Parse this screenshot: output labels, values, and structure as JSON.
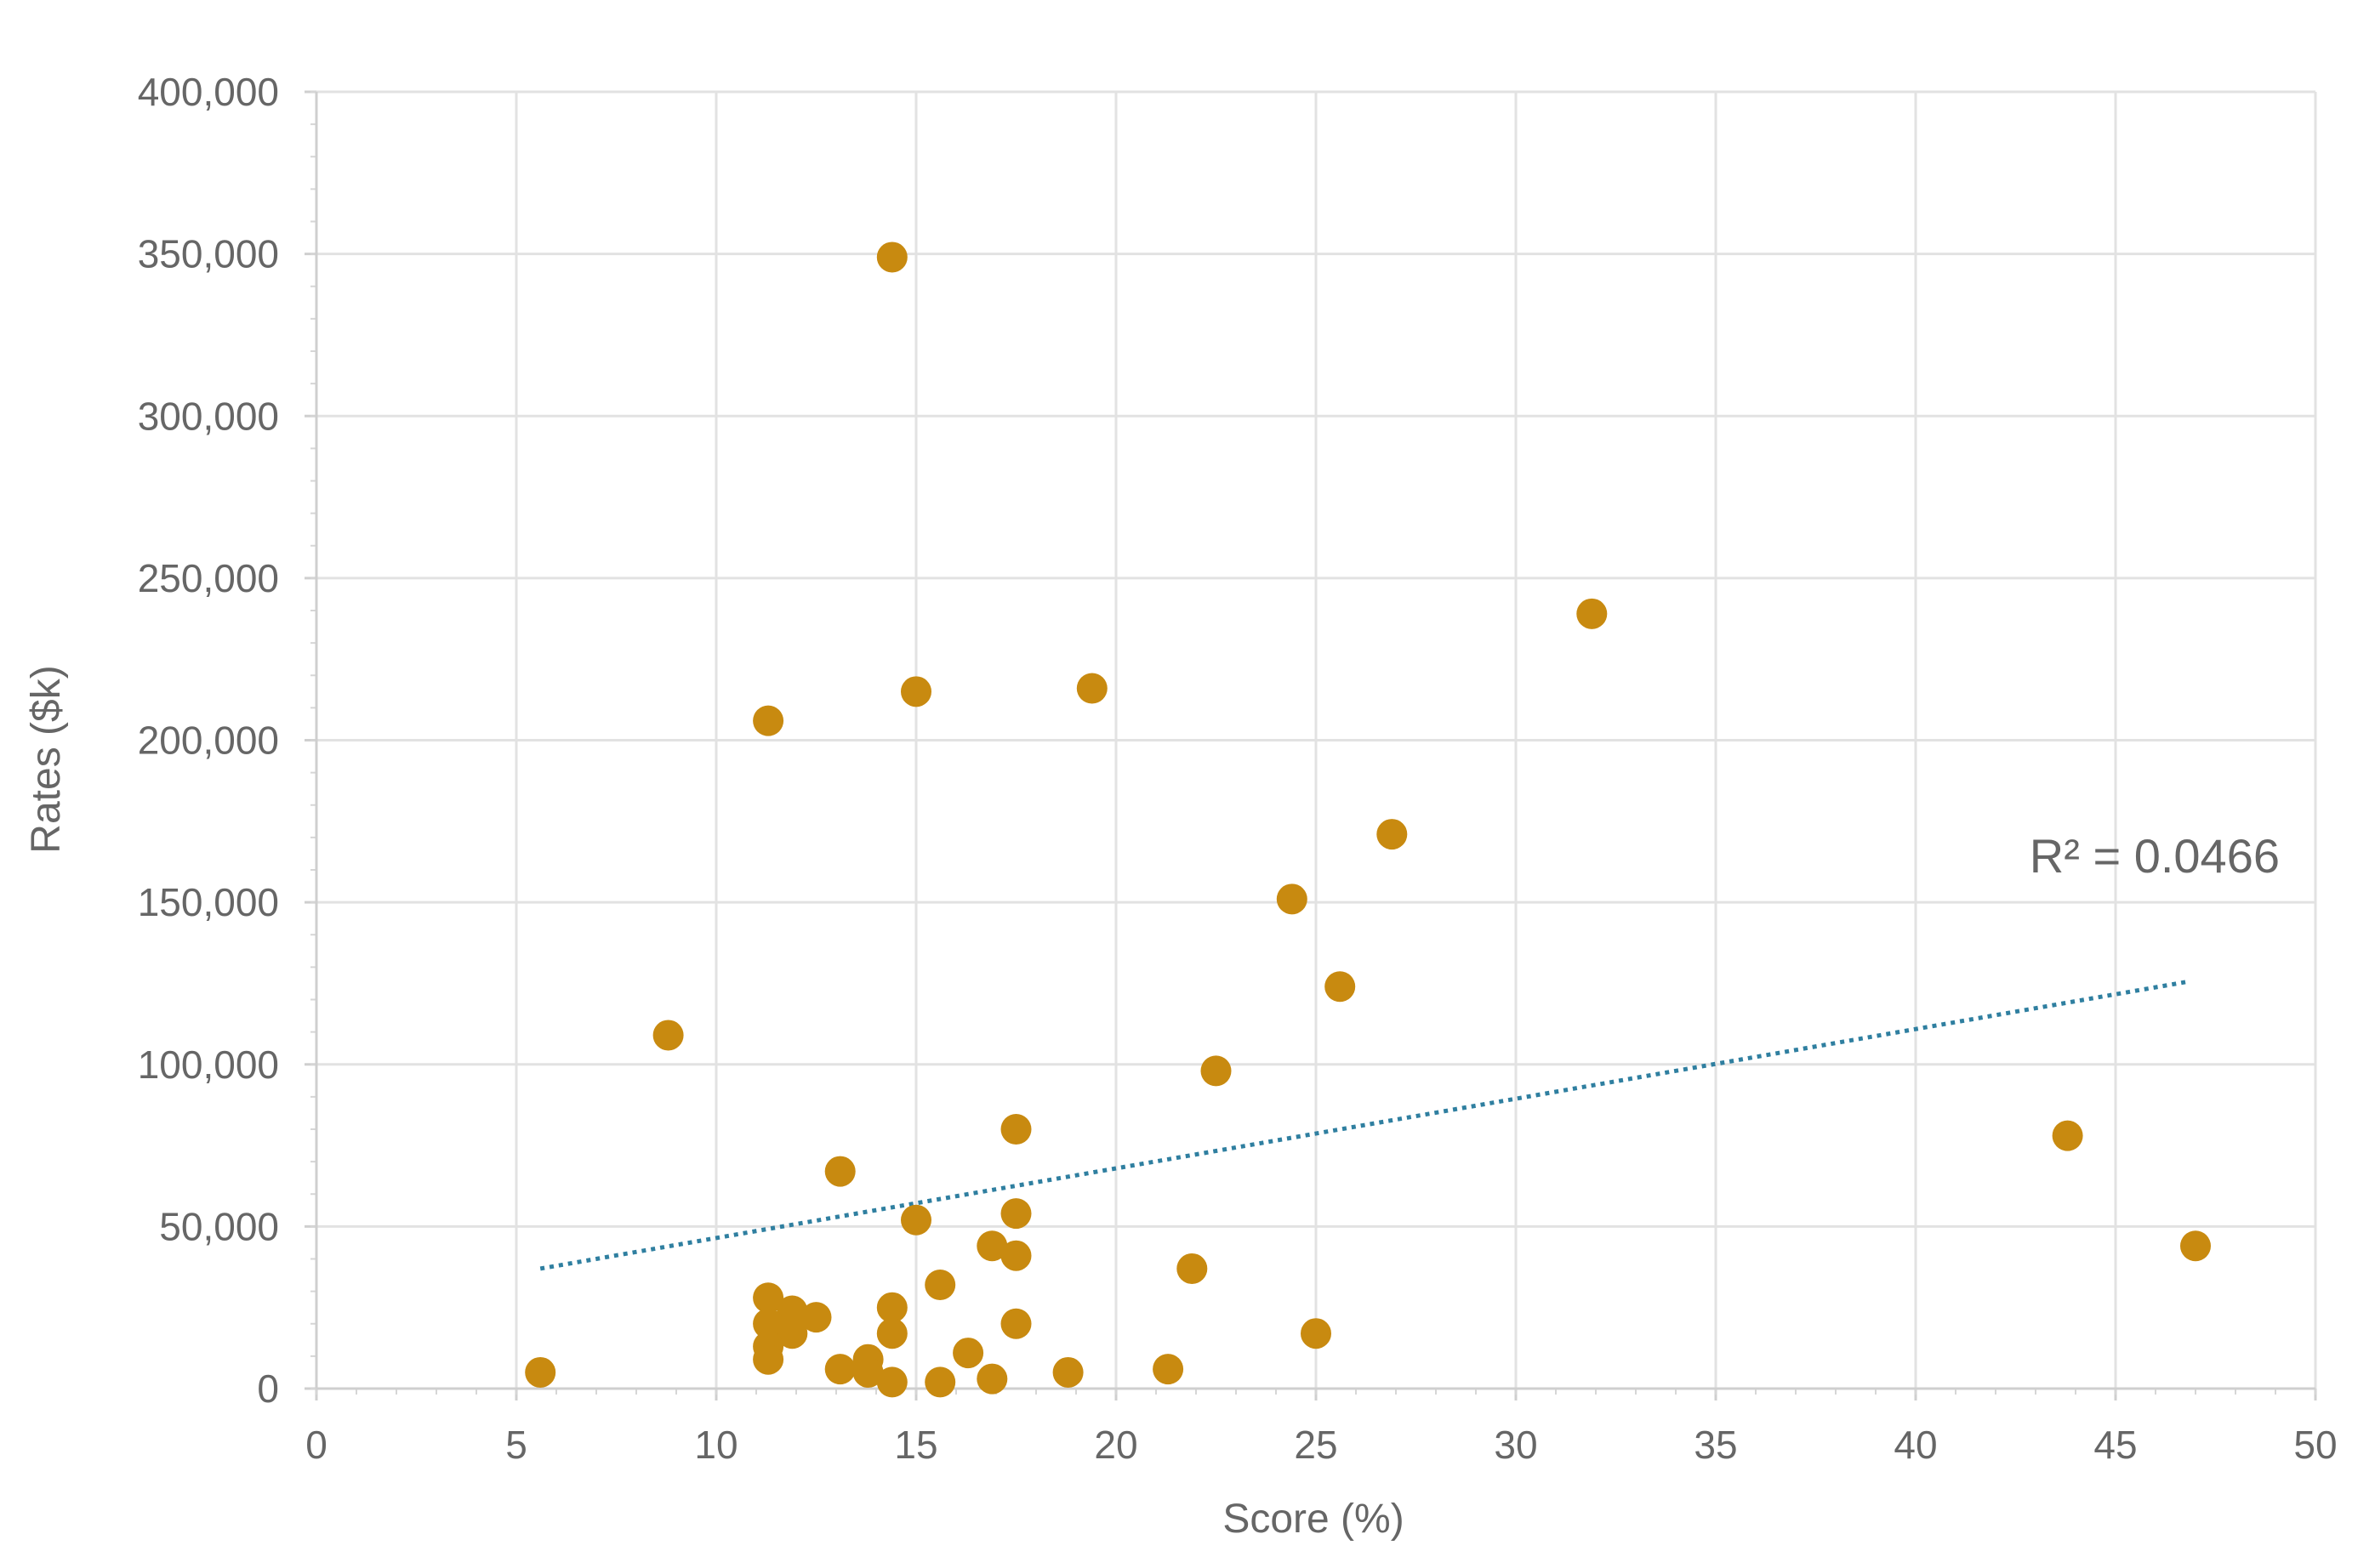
{
  "chart_data": {
    "type": "scatter",
    "title": "",
    "xlabel": "Score (%)",
    "ylabel": "Rates ($k)",
    "xlim": [
      0,
      50
    ],
    "ylim": [
      0,
      400000
    ],
    "x_ticks": [
      0,
      5,
      10,
      15,
      20,
      25,
      30,
      35,
      40,
      45,
      50
    ],
    "x_tick_labels": [
      "0",
      "5",
      "10",
      "15",
      "20",
      "25",
      "30",
      "35",
      "40",
      "45",
      "50"
    ],
    "y_ticks": [
      0,
      50000,
      100000,
      150000,
      200000,
      250000,
      300000,
      350000,
      400000
    ],
    "y_tick_labels": [
      "0",
      "50,000",
      "100,000",
      "150,000",
      "200,000",
      "250,000",
      "300,000",
      "350,000",
      "400,000"
    ],
    "grid": true,
    "legend": "none",
    "colors": {
      "points": "#c88a10",
      "trendline": "#2f7fa0",
      "grid": "#e2e2e2",
      "text": "#666666"
    },
    "series": [
      {
        "points": [
          [
            14.4,
            349000
          ],
          [
            31.9,
            239000
          ],
          [
            19.4,
            216000
          ],
          [
            15.0,
            215000
          ],
          [
            11.3,
            206000
          ],
          [
            26.9,
            171000
          ],
          [
            24.4,
            151000
          ],
          [
            25.6,
            124000
          ],
          [
            8.8,
            109000
          ],
          [
            22.5,
            98000
          ],
          [
            43.8,
            78000
          ],
          [
            17.5,
            80000
          ],
          [
            13.1,
            67000
          ],
          [
            17.5,
            54000
          ],
          [
            15.0,
            52000
          ],
          [
            16.9,
            44000
          ],
          [
            47.0,
            44000
          ],
          [
            17.5,
            41000
          ],
          [
            21.9,
            37000
          ],
          [
            15.6,
            32000
          ],
          [
            11.3,
            28000
          ],
          [
            11.9,
            24000
          ],
          [
            14.4,
            25000
          ],
          [
            12.5,
            22000
          ],
          [
            11.3,
            20000
          ],
          [
            17.5,
            20000
          ],
          [
            11.9,
            17000
          ],
          [
            14.4,
            17000
          ],
          [
            25.0,
            17000
          ],
          [
            11.3,
            13000
          ],
          [
            16.3,
            11000
          ],
          [
            13.8,
            9000
          ],
          [
            11.3,
            9000
          ],
          [
            13.1,
            6000
          ],
          [
            13.8,
            5000
          ],
          [
            21.3,
            6000
          ],
          [
            18.8,
            5000
          ],
          [
            5.6,
            5000
          ],
          [
            16.9,
            3000
          ],
          [
            14.4,
            2000
          ],
          [
            15.6,
            2000
          ]
        ]
      }
    ],
    "trendline": {
      "type": "linear",
      "style": "dotted",
      "x": [
        5.6,
        46.8
      ],
      "y": [
        37000,
        125500
      ]
    },
    "annotations": [
      {
        "text": "R² = 0.0466"
      }
    ]
  }
}
